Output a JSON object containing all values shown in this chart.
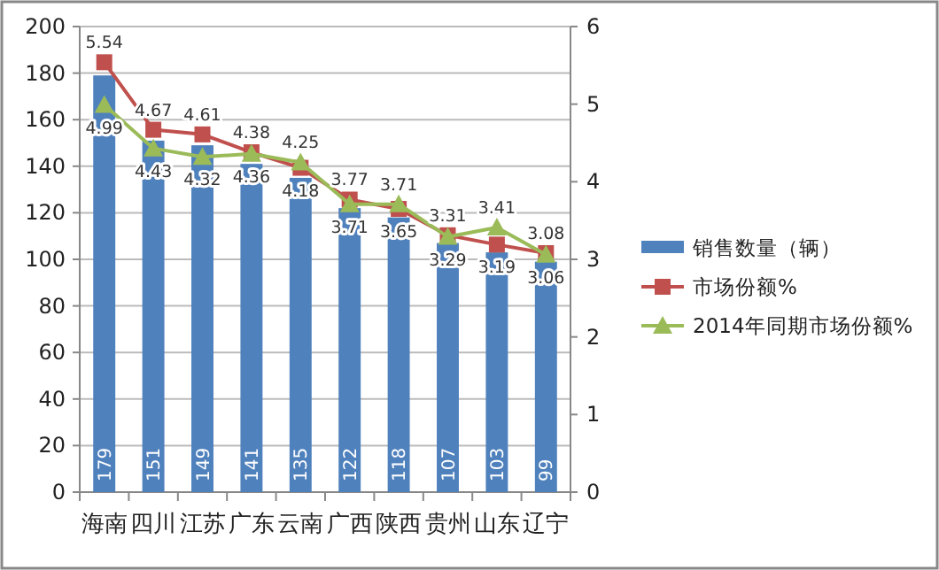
{
  "chart_data": {
    "type": "bar",
    "categories": [
      "海南",
      "四川",
      "江苏",
      "广东",
      "云南",
      "广西",
      "陕西",
      "贵州",
      "山东",
      "辽宁"
    ],
    "series": [
      {
        "name": "销售数量（辆）",
        "color": "#4f81bd",
        "values": [
          179,
          151,
          149,
          141,
          135,
          122,
          118,
          107,
          103,
          99
        ]
      },
      {
        "name": "市场份额%",
        "type": "line",
        "axis": "y2",
        "marker": "square",
        "color": "#c0504d",
        "values": [
          5.54,
          4.67,
          4.61,
          4.38,
          4.18,
          3.77,
          3.65,
          3.31,
          3.19,
          3.08
        ]
      },
      {
        "name": "2014年同期市场份额%",
        "type": "line",
        "axis": "y2",
        "marker": "triangle",
        "color": "#9bbb59",
        "values": [
          4.99,
          4.43,
          4.32,
          4.36,
          4.25,
          3.71,
          3.71,
          3.29,
          3.41,
          3.06
        ]
      }
    ],
    "ylim": [
      0,
      200
    ],
    "yticks": [
      0,
      20,
      40,
      60,
      80,
      100,
      120,
      140,
      160,
      180,
      200
    ],
    "y2lim": [
      0,
      6
    ],
    "y2ticks": [
      0,
      1,
      2,
      3,
      4,
      5,
      6
    ],
    "grid": "y",
    "legend": "right",
    "data_labels": true
  }
}
